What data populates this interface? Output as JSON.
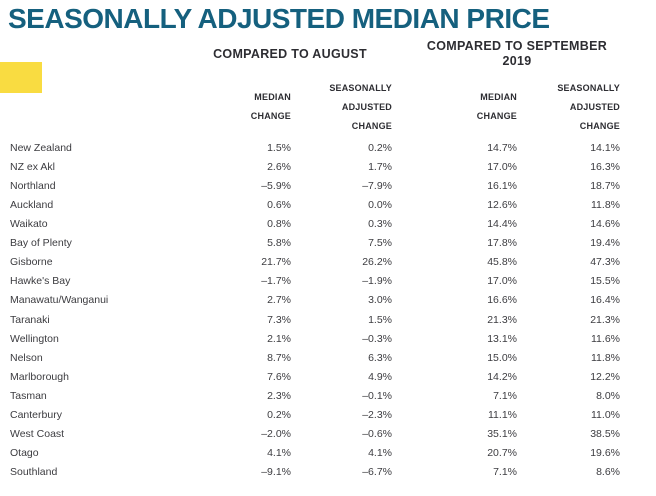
{
  "title": "SEASONALLY ADJUSTED MEDIAN PRICE",
  "colors": {
    "title_teal": "#15607E",
    "accent_yellow": "#F9DC41",
    "body_text": "#3C3C40",
    "header_text": "#2D2D32"
  },
  "table": {
    "group_headers": [
      {
        "label": "COMPARED TO AUGUST"
      },
      {
        "label": "COMPARED TO SEPTEMBER\n2019"
      }
    ],
    "sub_headers": [
      "MEDIAN\nCHANGE",
      "SEASONALLY\nADJUSTED\nCHANGE",
      "MEDIAN\nCHANGE",
      "SEASONALLY\nADJUSTED\nCHANGE"
    ],
    "rows": [
      {
        "region": "New Zealand",
        "values": [
          "1.5%",
          "0.2%",
          "14.7%",
          "14.1%"
        ]
      },
      {
        "region": "NZ ex Akl",
        "values": [
          "2.6%",
          "1.7%",
          "17.0%",
          "16.3%"
        ]
      },
      {
        "region": "Northland",
        "values": [
          "–5.9%",
          "–7.9%",
          "16.1%",
          "18.7%"
        ]
      },
      {
        "region": "Auckland",
        "values": [
          "0.6%",
          "0.0%",
          "12.6%",
          "11.8%"
        ]
      },
      {
        "region": "Waikato",
        "values": [
          "0.8%",
          "0.3%",
          "14.4%",
          "14.6%"
        ]
      },
      {
        "region": "Bay of Plenty",
        "values": [
          "5.8%",
          "7.5%",
          "17.8%",
          "19.4%"
        ]
      },
      {
        "region": "Gisborne",
        "values": [
          "21.7%",
          "26.2%",
          "45.8%",
          "47.3%"
        ]
      },
      {
        "region": "Hawke's Bay",
        "values": [
          "–1.7%",
          "–1.9%",
          "17.0%",
          "15.5%"
        ]
      },
      {
        "region": "Manawatu/Wanganui",
        "values": [
          "2.7%",
          "3.0%",
          "16.6%",
          "16.4%"
        ]
      },
      {
        "region": "Taranaki",
        "values": [
          "7.3%",
          "1.5%",
          "21.3%",
          "21.3%"
        ]
      },
      {
        "region": "Wellington",
        "values": [
          "2.1%",
          "–0.3%",
          "13.1%",
          "11.6%"
        ]
      },
      {
        "region": "Nelson",
        "values": [
          "8.7%",
          "6.3%",
          "15.0%",
          "11.8%"
        ]
      },
      {
        "region": "Marlborough",
        "values": [
          "7.6%",
          "4.9%",
          "14.2%",
          "12.2%"
        ]
      },
      {
        "region": "Tasman",
        "values": [
          "2.3%",
          "–0.1%",
          "7.1%",
          "8.0%"
        ]
      },
      {
        "region": "Canterbury",
        "values": [
          "0.2%",
          "–2.3%",
          "11.1%",
          "11.0%"
        ]
      },
      {
        "region": "West Coast",
        "values": [
          "–2.0%",
          "–0.6%",
          "35.1%",
          "38.5%"
        ]
      },
      {
        "region": "Otago",
        "values": [
          "4.1%",
          "4.1%",
          "20.7%",
          "19.6%"
        ]
      },
      {
        "region": "Southland",
        "values": [
          "–9.1%",
          "–6.7%",
          "7.1%",
          "8.6%"
        ]
      }
    ]
  },
  "chart_data": {
    "type": "table",
    "title": "SEASONALLY ADJUSTED MEDIAN PRICE",
    "column_groups": [
      "COMPARED TO AUGUST",
      "COMPARED TO SEPTEMBER 2019"
    ],
    "columns": [
      "Median Change (vs August)",
      "Seasonally Adjusted Change (vs August)",
      "Median Change (vs September 2019)",
      "Seasonally Adjusted Change (vs September 2019)"
    ],
    "unit": "percent",
    "rows": [
      {
        "region": "New Zealand",
        "values_pct": [
          1.5,
          0.2,
          14.7,
          14.1
        ]
      },
      {
        "region": "NZ ex Akl",
        "values_pct": [
          2.6,
          1.7,
          17.0,
          16.3
        ]
      },
      {
        "region": "Northland",
        "values_pct": [
          -5.9,
          -7.9,
          16.1,
          18.7
        ]
      },
      {
        "region": "Auckland",
        "values_pct": [
          0.6,
          0.0,
          12.6,
          11.8
        ]
      },
      {
        "region": "Waikato",
        "values_pct": [
          0.8,
          0.3,
          14.4,
          14.6
        ]
      },
      {
        "region": "Bay of Plenty",
        "values_pct": [
          5.8,
          7.5,
          17.8,
          19.4
        ]
      },
      {
        "region": "Gisborne",
        "values_pct": [
          21.7,
          26.2,
          45.8,
          47.3
        ]
      },
      {
        "region": "Hawke's Bay",
        "values_pct": [
          -1.7,
          -1.9,
          17.0,
          15.5
        ]
      },
      {
        "region": "Manawatu/Wanganui",
        "values_pct": [
          2.7,
          3.0,
          16.6,
          16.4
        ]
      },
      {
        "region": "Taranaki",
        "values_pct": [
          7.3,
          1.5,
          21.3,
          21.3
        ]
      },
      {
        "region": "Wellington",
        "values_pct": [
          2.1,
          -0.3,
          13.1,
          11.6
        ]
      },
      {
        "region": "Nelson",
        "values_pct": [
          8.7,
          6.3,
          15.0,
          11.8
        ]
      },
      {
        "region": "Marlborough",
        "values_pct": [
          7.6,
          4.9,
          14.2,
          12.2
        ]
      },
      {
        "region": "Tasman",
        "values_pct": [
          2.3,
          -0.1,
          7.1,
          8.0
        ]
      },
      {
        "region": "Canterbury",
        "values_pct": [
          0.2,
          -2.3,
          11.1,
          11.0
        ]
      },
      {
        "region": "West Coast",
        "values_pct": [
          -2.0,
          -0.6,
          35.1,
          38.5
        ]
      },
      {
        "region": "Otago",
        "values_pct": [
          4.1,
          4.1,
          20.7,
          19.6
        ]
      },
      {
        "region": "Southland",
        "values_pct": [
          -9.1,
          -6.7,
          7.1,
          8.6
        ]
      }
    ]
  }
}
